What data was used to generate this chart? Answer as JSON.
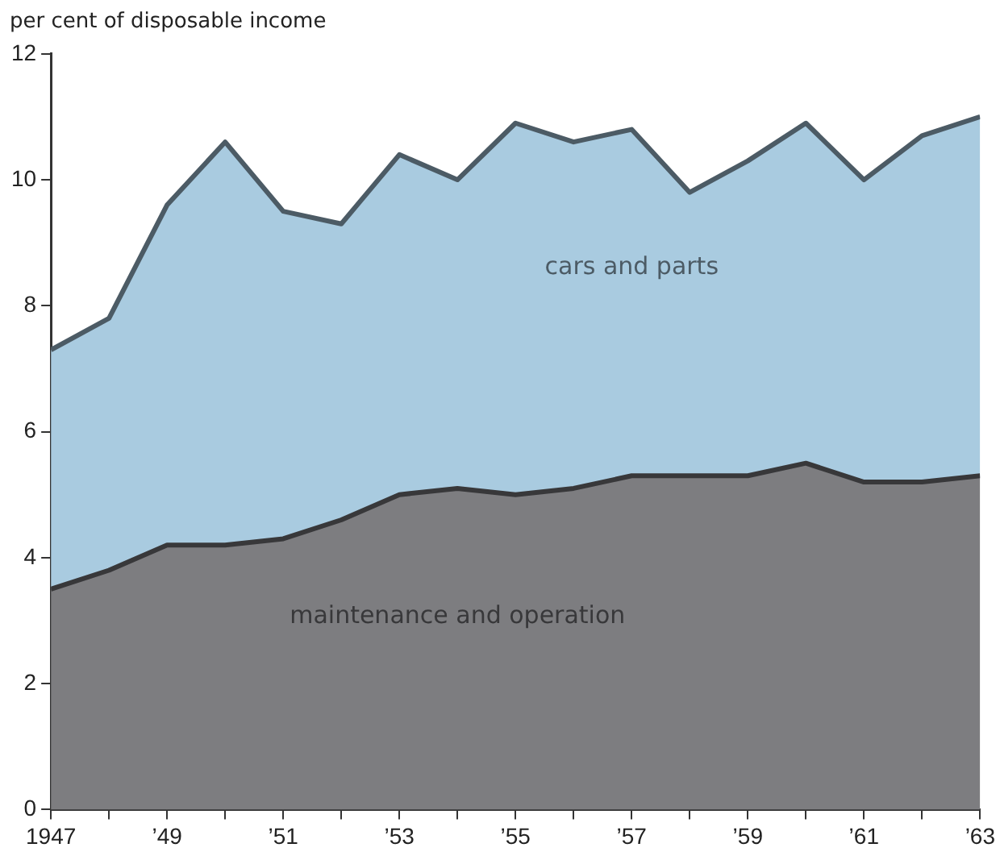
{
  "chart_data": {
    "type": "area",
    "stacked": true,
    "ylabel": "per cent of disposable income",
    "x": [
      1947,
      1948,
      1949,
      1950,
      1951,
      1952,
      1953,
      1954,
      1955,
      1956,
      1957,
      1958,
      1959,
      1960,
      1961,
      1962,
      1963
    ],
    "series": [
      {
        "name": "maintenance and operation",
        "color": "#7d7d80",
        "values": [
          3.5,
          3.8,
          4.2,
          4.2,
          4.3,
          4.6,
          5.0,
          5.1,
          5.0,
          5.1,
          5.3,
          5.3,
          5.3,
          5.5,
          5.2,
          5.2,
          5.3
        ]
      },
      {
        "name": "cars and parts",
        "color": "#a9cbe0",
        "values": [
          3.8,
          4.0,
          5.4,
          6.4,
          5.2,
          4.7,
          5.4,
          4.9,
          5.9,
          5.5,
          5.5,
          4.5,
          5.0,
          5.4,
          4.8,
          5.5,
          5.7
        ]
      }
    ],
    "xlim": [
      1947,
      1963
    ],
    "xticks": [
      1947,
      {
        "value": 1948,
        "label": null
      },
      {
        "value": 1949,
        "label": "’49"
      },
      {
        "value": 1950,
        "label": null
      },
      {
        "value": 1951,
        "label": "’51"
      },
      {
        "value": 1952,
        "label": null
      },
      {
        "value": 1953,
        "label": "’53"
      },
      {
        "value": 1954,
        "label": null
      },
      {
        "value": 1955,
        "label": "’55"
      },
      {
        "value": 1956,
        "label": null
      },
      {
        "value": 1957,
        "label": "’57"
      },
      {
        "value": 1958,
        "label": null
      },
      {
        "value": 1959,
        "label": "’59"
      },
      {
        "value": 1960,
        "label": null
      },
      {
        "value": 1961,
        "label": "’61"
      },
      {
        "value": 1962,
        "label": null
      },
      {
        "value": 1963,
        "label": "’63"
      }
    ],
    "ylim": [
      0,
      12
    ],
    "yticks": [
      0,
      2,
      4,
      6,
      8,
      10,
      12
    ],
    "grid": false,
    "legend": false
  }
}
